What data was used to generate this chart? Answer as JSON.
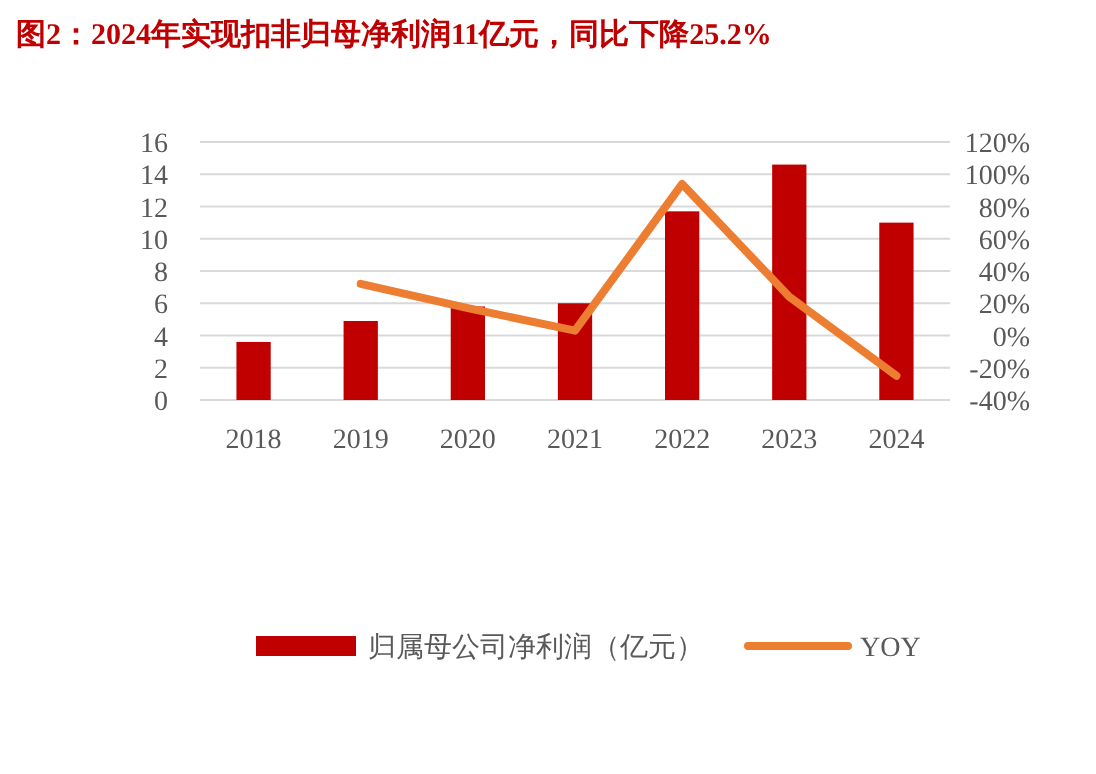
{
  "chart_data": {
    "type": "bar",
    "title": "图2：2024年实现扣非归母净利润11亿元，同比下降25.2%",
    "categories": [
      "2018",
      "2019",
      "2020",
      "2021",
      "2022",
      "2023",
      "2024"
    ],
    "series": [
      {
        "name": "归属母公司净利润（亿元）",
        "color": "#c00000",
        "values": [
          3.6,
          4.9,
          5.8,
          6.0,
          11.7,
          14.6,
          11.0
        ]
      },
      {
        "name": "YOY",
        "type": "line",
        "axis": "y2",
        "color": "#ed7d31",
        "values": [
          null,
          32,
          17,
          3,
          94,
          24,
          -25
        ]
      }
    ],
    "ylim": [
      0,
      16
    ],
    "yticks": [
      0,
      2,
      4,
      6,
      8,
      10,
      12,
      14,
      16
    ],
    "y2lim": [
      -40,
      120
    ],
    "y2ticks": [
      {
        "value": -40,
        "label": "-40%"
      },
      {
        "value": -20,
        "label": "-20%"
      },
      {
        "value": 0,
        "label": "0%"
      },
      {
        "value": 20,
        "label": "20%"
      },
      {
        "value": 40,
        "label": "40%"
      },
      {
        "value": 60,
        "label": "60%"
      },
      {
        "value": 80,
        "label": "80%"
      },
      {
        "value": 100,
        "label": "100%"
      },
      {
        "value": 120,
        "label": "120%"
      }
    ],
    "grid": "y",
    "legend": "bottom"
  }
}
